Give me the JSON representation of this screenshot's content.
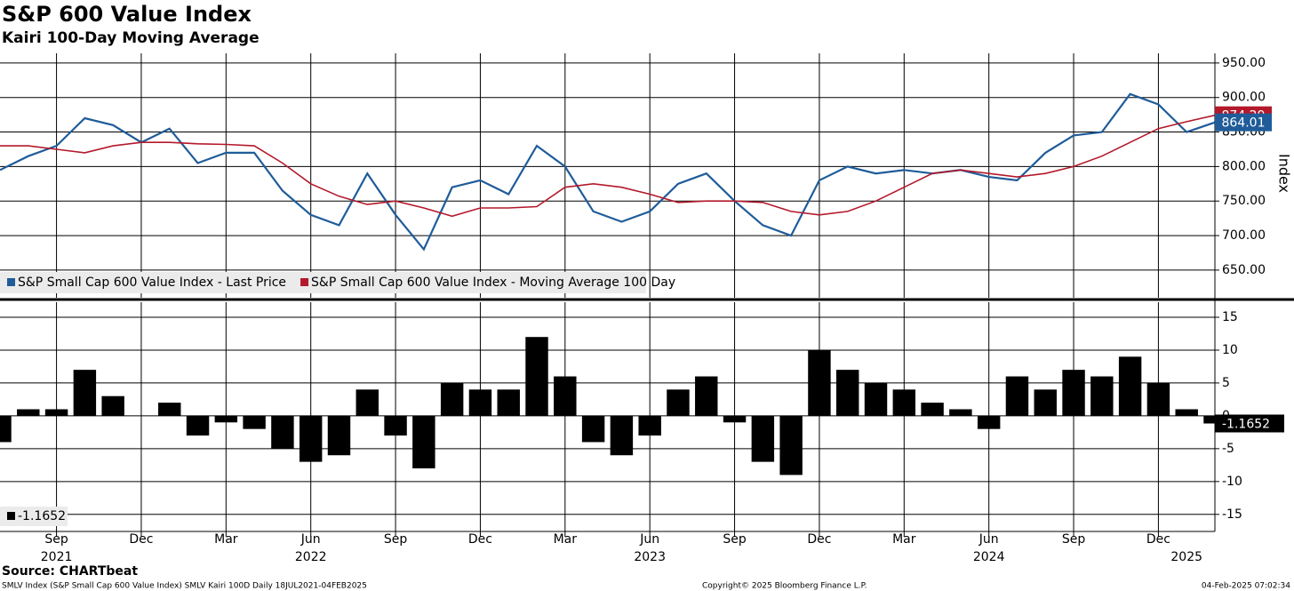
{
  "chart_data": [
    {
      "type": "line",
      "title": "S&P 600 Value Index",
      "subtitle": "Kairi 100-Day Moving Average",
      "ylabel": "Index",
      "x": [
        "2021-07",
        "2021-08",
        "2021-09",
        "2021-10",
        "2021-11",
        "2021-12",
        "2022-01",
        "2022-02",
        "2022-03",
        "2022-04",
        "2022-05",
        "2022-06",
        "2022-07",
        "2022-08",
        "2022-09",
        "2022-10",
        "2022-11",
        "2022-12",
        "2023-01",
        "2023-02",
        "2023-03",
        "2023-04",
        "2023-05",
        "2023-06",
        "2023-07",
        "2023-08",
        "2023-09",
        "2023-10",
        "2023-11",
        "2023-12",
        "2024-01",
        "2024-02",
        "2024-03",
        "2024-04",
        "2024-05",
        "2024-06",
        "2024-07",
        "2024-08",
        "2024-09",
        "2024-10",
        "2024-11",
        "2024-12",
        "2025-01",
        "2025-02"
      ],
      "series": [
        {
          "name": "S&P Small Cap 600 Value Index - Last Price",
          "color": "#1f5c99",
          "values": [
            795,
            815,
            830,
            870,
            860,
            835,
            855,
            805,
            820,
            820,
            765,
            730,
            715,
            790,
            730,
            680,
            770,
            780,
            760,
            830,
            800,
            735,
            720,
            735,
            775,
            790,
            750,
            715,
            700,
            780,
            800,
            790,
            795,
            790,
            795,
            785,
            780,
            820,
            845,
            850,
            905,
            890,
            850,
            864.01
          ]
        },
        {
          "name": "S&P Small Cap 600 Value Index - Moving Average 100 Day",
          "color": "#b3192b",
          "values": [
            830,
            830,
            825,
            820,
            830,
            835,
            835,
            833,
            832,
            830,
            805,
            775,
            757,
            745,
            750,
            740,
            728,
            740,
            740,
            742,
            770,
            775,
            770,
            760,
            748,
            750,
            750,
            748,
            735,
            730,
            735,
            750,
            770,
            790,
            795,
            790,
            785,
            790,
            800,
            815,
            835,
            855,
            865,
            874.29
          ]
        }
      ],
      "xlim": [
        "2021-07",
        "2025-02"
      ],
      "ylim": [
        610,
        964
      ],
      "yticks": [
        {
          "value": 650,
          "label": "650.00"
        },
        {
          "value": 700,
          "label": "700.00"
        },
        {
          "value": 750,
          "label": "750.00"
        },
        {
          "value": 800,
          "label": "800.00"
        },
        {
          "value": 850,
          "label": "850.00"
        },
        {
          "value": 900,
          "label": "900.00"
        },
        {
          "value": 950,
          "label": "950.00"
        }
      ],
      "grid": true,
      "legend": "bottom-left"
    },
    {
      "type": "bar",
      "x": [
        "2021-07",
        "2021-08",
        "2021-09",
        "2021-10",
        "2021-11",
        "2021-12",
        "2022-01",
        "2022-02",
        "2022-03",
        "2022-04",
        "2022-05",
        "2022-06",
        "2022-07",
        "2022-08",
        "2022-09",
        "2022-10",
        "2022-11",
        "2022-12",
        "2023-01",
        "2023-02",
        "2023-03",
        "2023-04",
        "2023-05",
        "2023-06",
        "2023-07",
        "2023-08",
        "2023-09",
        "2023-10",
        "2023-11",
        "2023-12",
        "2024-01",
        "2024-02",
        "2024-03",
        "2024-04",
        "2024-05",
        "2024-06",
        "2024-07",
        "2024-08",
        "2024-09",
        "2024-10",
        "2024-11",
        "2024-12",
        "2025-01",
        "2025-02"
      ],
      "values": [
        -4,
        1,
        1,
        7,
        3,
        0,
        2,
        -3,
        -1,
        -2,
        -5,
        -7,
        -6,
        4,
        -3,
        -8,
        5,
        4,
        4,
        12,
        6,
        -4,
        -6,
        -3,
        4,
        6,
        -1,
        -7,
        -9,
        10,
        7,
        5,
        4,
        2,
        1,
        -2,
        6,
        4,
        7,
        6,
        9,
        5,
        1,
        -1.1652
      ],
      "color": "#000000",
      "xlim": [
        "2021-07",
        "2025-02"
      ],
      "ylim": [
        -17.6,
        17.3
      ],
      "yticks": [
        -15,
        -10,
        -5,
        0,
        5,
        10,
        15
      ],
      "xticks": [
        {
          "value": "2021-09",
          "label": "Sep"
        },
        {
          "value": "2021-12",
          "label": "Dec"
        },
        {
          "value": "2022-03",
          "label": "Mar"
        },
        {
          "value": "2022-06",
          "label": "Jun"
        },
        {
          "value": "2022-09",
          "label": "Sep"
        },
        {
          "value": "2022-12",
          "label": "Dec"
        },
        {
          "value": "2023-03",
          "label": "Mar"
        },
        {
          "value": "2023-06",
          "label": "Jun"
        },
        {
          "value": "2023-09",
          "label": "Sep"
        },
        {
          "value": "2023-12",
          "label": "Dec"
        },
        {
          "value": "2024-03",
          "label": "Mar"
        },
        {
          "value": "2024-06",
          "label": "Jun"
        },
        {
          "value": "2024-09",
          "label": "Sep"
        },
        {
          "value": "2024-12",
          "label": "Dec"
        }
      ],
      "year_labels": [
        {
          "value": "2021-09",
          "label": "2021"
        },
        {
          "value": "2022-06",
          "label": "2022"
        },
        {
          "value": "2023-06",
          "label": "2023"
        },
        {
          "value": "2024-06",
          "label": "2024"
        },
        {
          "value": "2025-01",
          "label": "2025"
        }
      ],
      "grid": true,
      "legend": "bottom-left"
    }
  ],
  "footer": {
    "source": "Source: CHARTbeat",
    "description": "SMLV Index (S&P Small Cap 600 Value Index) SMLV Kairi 100D  Daily 18JUL2021-04FEB2025",
    "copyright": "Copyright© 2025 Bloomberg Finance L.P.",
    "timestamp": "04-Feb-2025 07:02:34"
  }
}
